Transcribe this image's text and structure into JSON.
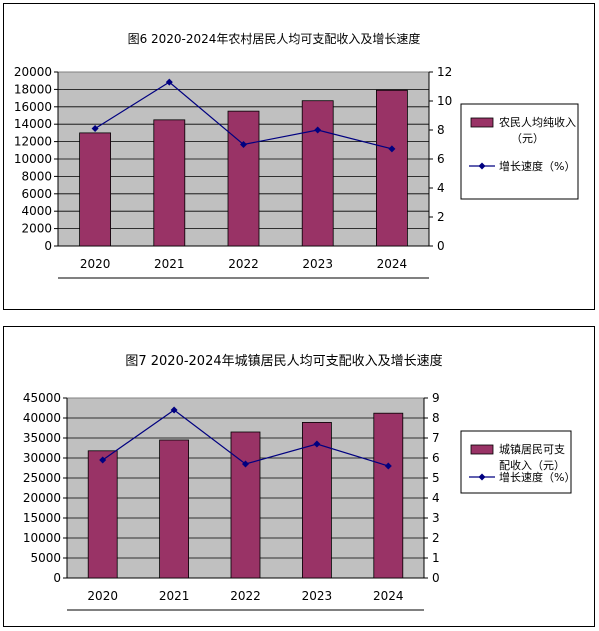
{
  "chart_data": [
    {
      "type": "bar",
      "title": "图6 2020-2024年农村居民人均可支配收入及增长速度",
      "categories": [
        "2020",
        "2021",
        "2022",
        "2023",
        "2024"
      ],
      "series": [
        {
          "name": "农民人均纯收入（元）",
          "type": "bar",
          "axis": "left",
          "values": [
            13000,
            14500,
            15500,
            16700,
            17900
          ]
        },
        {
          "name": "增长速度（%）",
          "type": "line",
          "axis": "right",
          "values": [
            8.1,
            11.3,
            7.0,
            8.0,
            6.7
          ]
        }
      ],
      "legend_labels": [
        "农民人均纯收入",
        "（元）",
        "增长速度（%）"
      ],
      "left_ticks": [
        "0",
        "2000",
        "4000",
        "6000",
        "8000",
        "10000",
        "12000",
        "14000",
        "16000",
        "18000",
        "20000"
      ],
      "right_ticks": [
        "0",
        "2",
        "4",
        "6",
        "8",
        "10",
        "12"
      ],
      "ylim_left": [
        0,
        20000
      ],
      "ylim_right": [
        0,
        12
      ],
      "bar_color": "#993366",
      "line_color": "#000080",
      "plot_bg": "#c0c0c0",
      "legend": "right"
    },
    {
      "type": "bar",
      "title": "图7   2020-2024年城镇居民人均可支配收入及增长速度",
      "categories": [
        "2020",
        "2021",
        "2022",
        "2023",
        "2024"
      ],
      "series": [
        {
          "name": "城镇居民可支配收入（元）",
          "type": "bar",
          "axis": "left",
          "values": [
            31800,
            34500,
            36500,
            38900,
            41200
          ]
        },
        {
          "name": "增长速度（%）",
          "type": "line",
          "axis": "right",
          "values": [
            5.9,
            8.4,
            5.7,
            6.7,
            5.6
          ]
        }
      ],
      "legend_labels": [
        "城镇居民可支",
        "配收入（元）",
        "增长速度（%）"
      ],
      "left_ticks": [
        "0",
        "5000",
        "10000",
        "15000",
        "20000",
        "25000",
        "30000",
        "35000",
        "40000",
        "45000"
      ],
      "right_ticks": [
        "0",
        "1",
        "2",
        "3",
        "4",
        "5",
        "6",
        "7",
        "8",
        "9"
      ],
      "ylim_left": [
        0,
        45000
      ],
      "ylim_right": [
        0,
        9
      ],
      "bar_color": "#993366",
      "line_color": "#000080",
      "plot_bg": "#c0c0c0",
      "legend": "right"
    }
  ]
}
